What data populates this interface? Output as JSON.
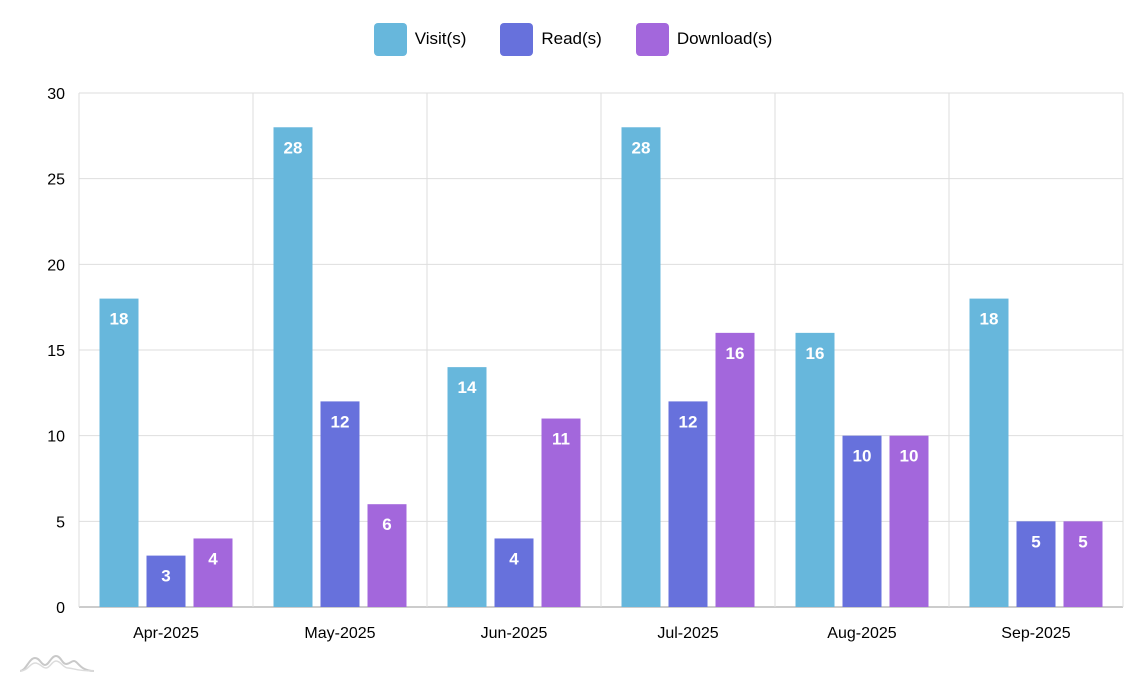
{
  "chart_data": {
    "type": "bar",
    "title": "",
    "xlabel": "",
    "ylabel": "",
    "ylim": [
      0,
      30
    ],
    "yticks": [
      0,
      5,
      10,
      15,
      20,
      25,
      30
    ],
    "grid": true,
    "legend_position": "top-center",
    "categories": [
      "Apr-2025",
      "May-2025",
      "Jun-2025",
      "Jul-2025",
      "Aug-2025",
      "Sep-2025"
    ],
    "series": [
      {
        "name": "Visit(s)",
        "color": "#67b7dc",
        "values": [
          18,
          28,
          14,
          28,
          16,
          18
        ]
      },
      {
        "name": "Read(s)",
        "color": "#6771dc",
        "values": [
          3,
          12,
          4,
          12,
          10,
          5
        ]
      },
      {
        "name": "Download(s)",
        "color": "#a367dc",
        "values": [
          4,
          6,
          11,
          16,
          10,
          5
        ]
      }
    ]
  },
  "watermark": {
    "icon": "amcharts-logo-icon"
  }
}
